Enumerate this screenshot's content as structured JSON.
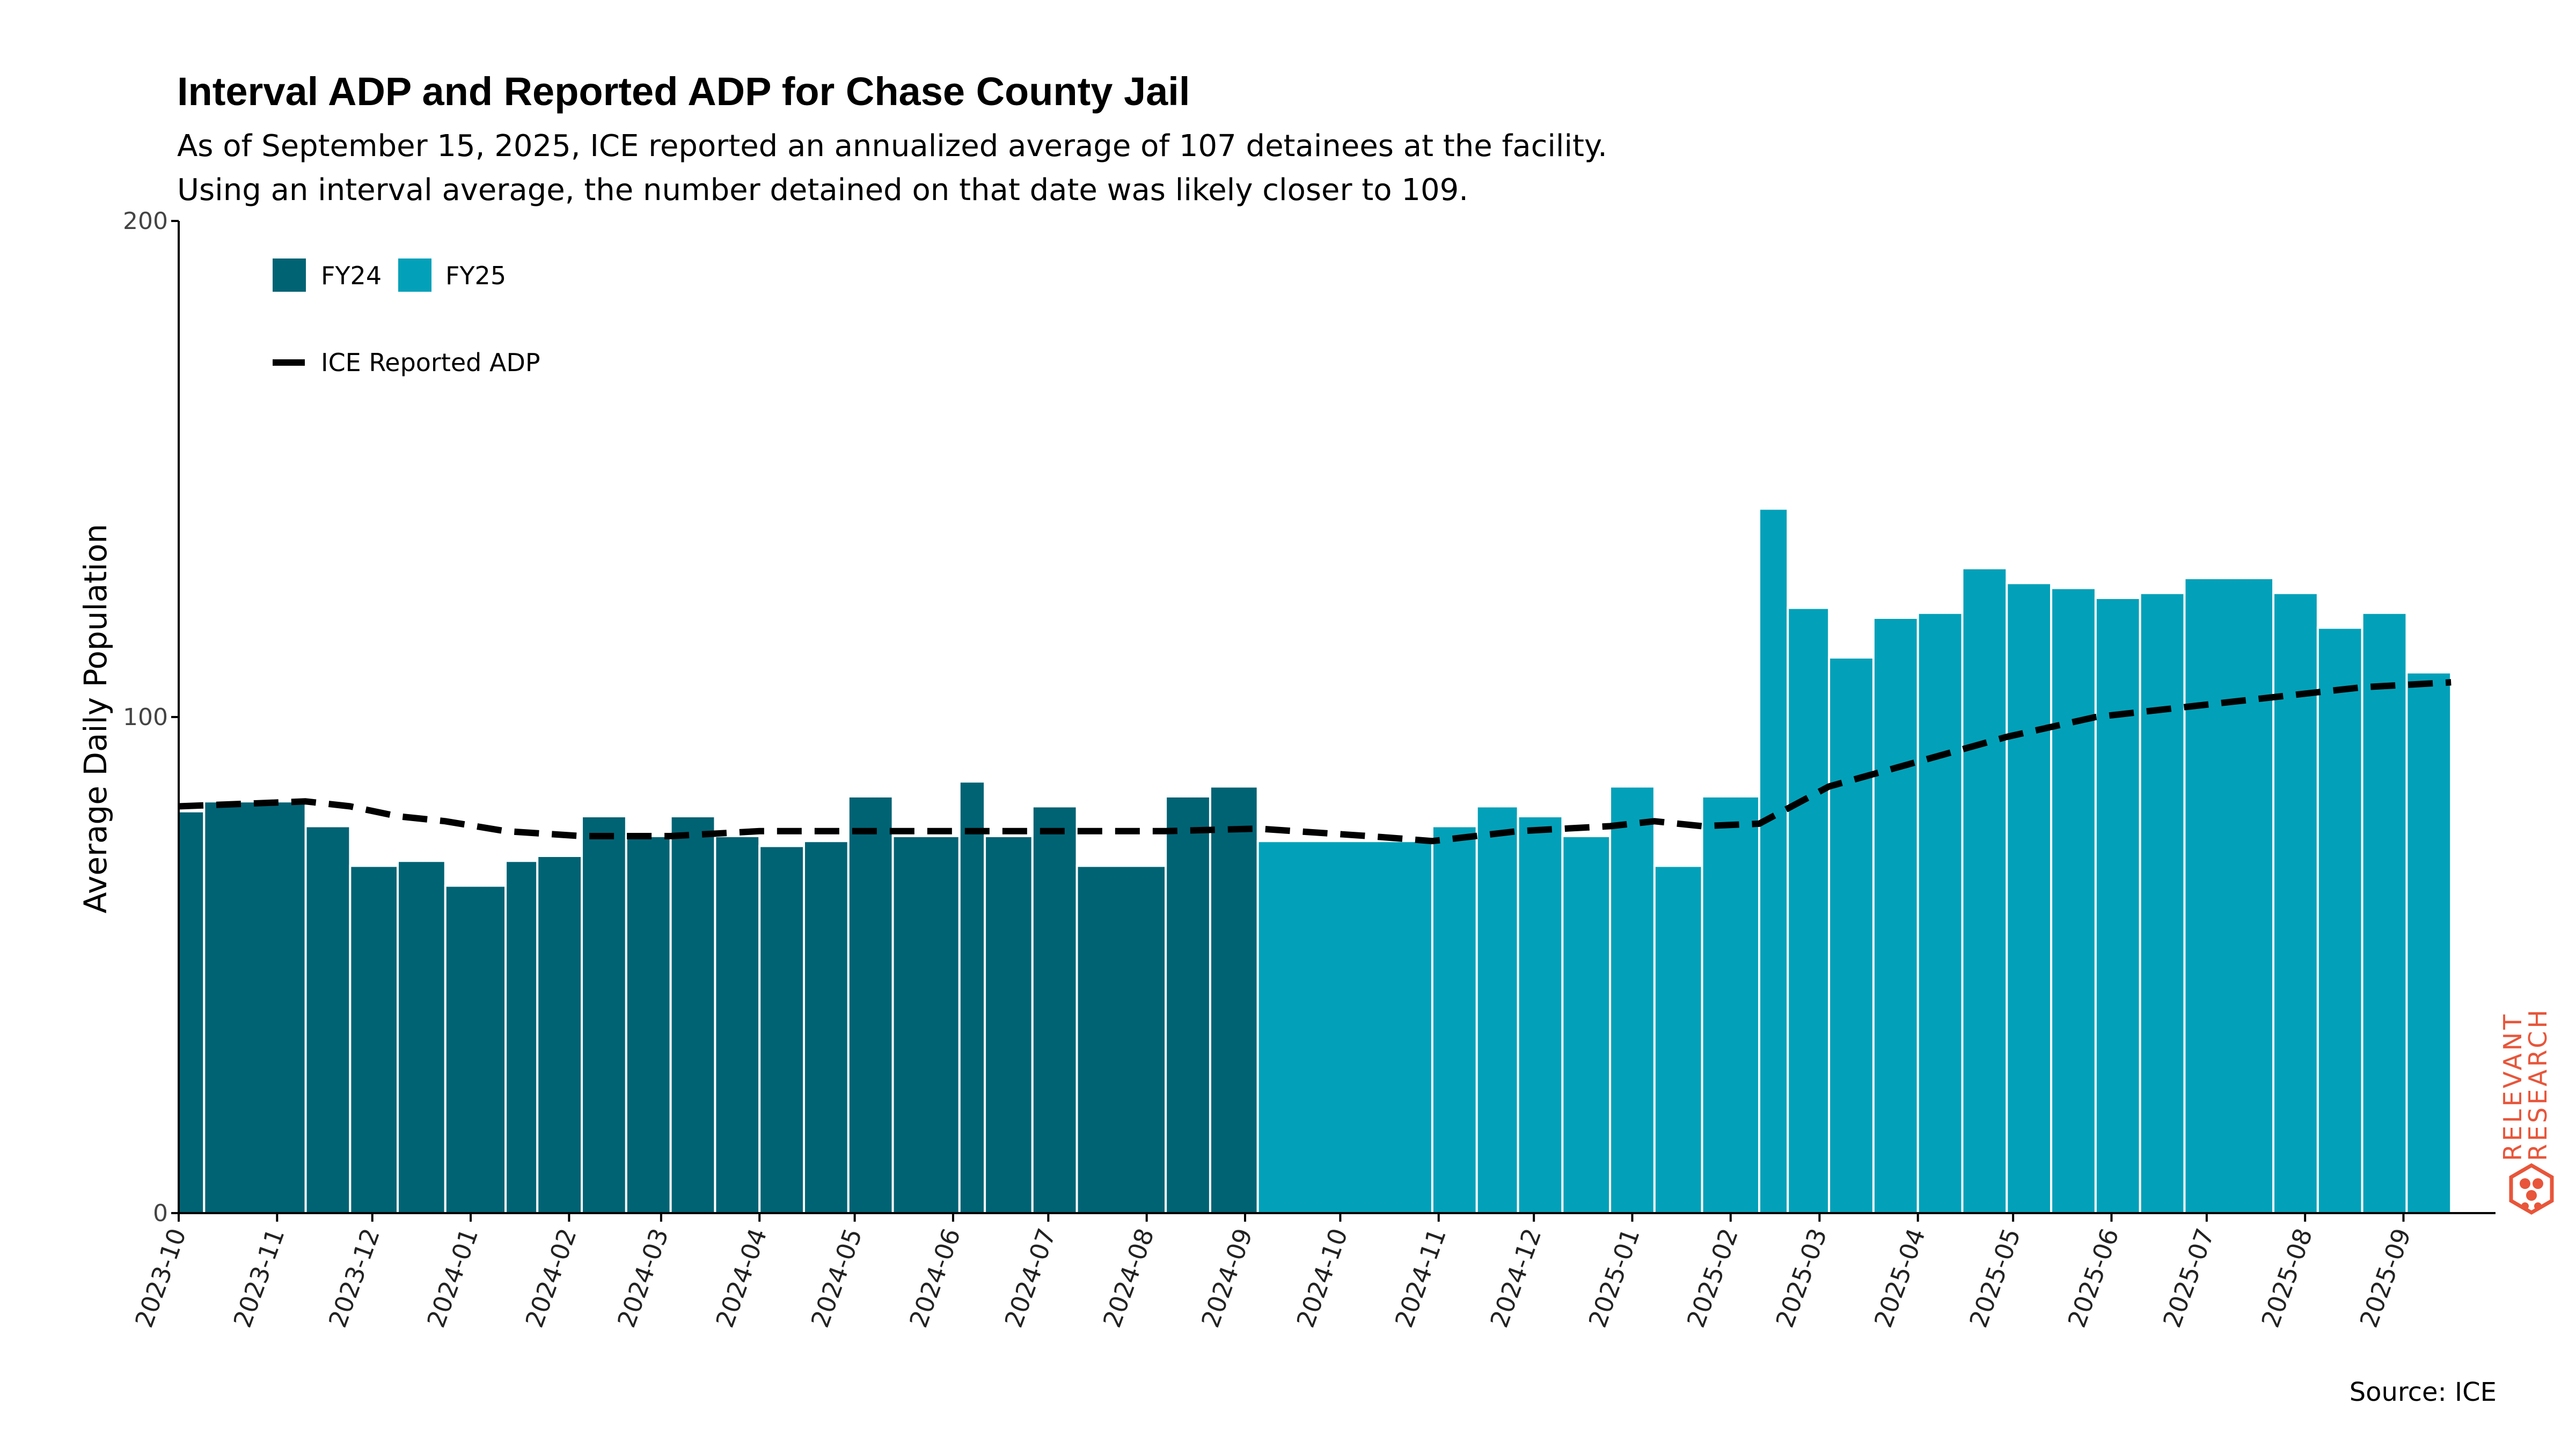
{
  "chart_data": {
    "type": "bar",
    "title": "Interval ADP and Reported ADP for Chase County Jail",
    "subtitle_lines": [
      "As of September 15, 2025, ICE reported an annualized average of 107 detainees at the facility.",
      "Using an interval average, the number detained on that date was likely closer to 109."
    ],
    "ylabel": "Average Daily Population",
    "xlabel": "",
    "ylim": [
      0,
      200
    ],
    "yticks": [
      "0",
      "100",
      "200"
    ],
    "xticks": [
      "2023-10",
      "2023-11",
      "2023-12",
      "2024-01",
      "2024-02",
      "2024-03",
      "2024-04",
      "2024-05",
      "2024-06",
      "2024-07",
      "2024-08",
      "2024-09",
      "2024-10",
      "2024-11",
      "2024-12",
      "2025-01",
      "2025-02",
      "2025-03",
      "2025-04",
      "2025-05",
      "2025-06",
      "2025-07",
      "2025-08",
      "2025-09"
    ],
    "x_range": [
      "2023-10-01",
      "2025-09-30"
    ],
    "legend": [
      {
        "label": "FY24",
        "color": "#006374",
        "kind": "bar"
      },
      {
        "label": "FY25",
        "color": "#02a1b9",
        "kind": "bar"
      },
      {
        "label": "ICE Reported ADP",
        "color": "#000000",
        "kind": "dashed-line"
      }
    ],
    "legend_position": "top-left",
    "grid": false,
    "bars": [
      {
        "start": "2023-10-01",
        "end": "2023-10-09",
        "value": 81,
        "fy": "FY24"
      },
      {
        "start": "2023-10-09",
        "end": "2023-11-10",
        "value": 83,
        "fy": "FY24"
      },
      {
        "start": "2023-11-10",
        "end": "2023-11-24",
        "value": 78,
        "fy": "FY24"
      },
      {
        "start": "2023-11-24",
        "end": "2023-12-09",
        "value": 70,
        "fy": "FY24"
      },
      {
        "start": "2023-12-09",
        "end": "2023-12-24",
        "value": 71,
        "fy": "FY24"
      },
      {
        "start": "2023-12-24",
        "end": "2024-01-12",
        "value": 66,
        "fy": "FY24"
      },
      {
        "start": "2024-01-12",
        "end": "2024-01-22",
        "value": 71,
        "fy": "FY24"
      },
      {
        "start": "2024-01-22",
        "end": "2024-02-05",
        "value": 72,
        "fy": "FY24"
      },
      {
        "start": "2024-02-05",
        "end": "2024-02-19",
        "value": 80,
        "fy": "FY24"
      },
      {
        "start": "2024-02-19",
        "end": "2024-03-04",
        "value": 76,
        "fy": "FY24"
      },
      {
        "start": "2024-03-04",
        "end": "2024-03-18",
        "value": 80,
        "fy": "FY24"
      },
      {
        "start": "2024-03-18",
        "end": "2024-04-01",
        "value": 76,
        "fy": "FY24"
      },
      {
        "start": "2024-04-01",
        "end": "2024-04-15",
        "value": 74,
        "fy": "FY24"
      },
      {
        "start": "2024-04-15",
        "end": "2024-04-29",
        "value": 75,
        "fy": "FY24"
      },
      {
        "start": "2024-04-29",
        "end": "2024-05-13",
        "value": 84,
        "fy": "FY24"
      },
      {
        "start": "2024-05-13",
        "end": "2024-06-03",
        "value": 76,
        "fy": "FY24"
      },
      {
        "start": "2024-06-03",
        "end": "2024-06-11",
        "value": 87,
        "fy": "FY24"
      },
      {
        "start": "2024-06-11",
        "end": "2024-06-26",
        "value": 76,
        "fy": "FY24"
      },
      {
        "start": "2024-06-26",
        "end": "2024-07-10",
        "value": 82,
        "fy": "FY24"
      },
      {
        "start": "2024-07-10",
        "end": "2024-08-07",
        "value": 70,
        "fy": "FY24"
      },
      {
        "start": "2024-08-07",
        "end": "2024-08-21",
        "value": 84,
        "fy": "FY24"
      },
      {
        "start": "2024-08-21",
        "end": "2024-09-05",
        "value": 86,
        "fy": "FY24"
      },
      {
        "start": "2024-09-05",
        "end": "2024-10-30",
        "value": 75,
        "fy": "FY25"
      },
      {
        "start": "2024-10-30",
        "end": "2024-11-13",
        "value": 78,
        "fy": "FY25"
      },
      {
        "start": "2024-11-13",
        "end": "2024-11-26",
        "value": 82,
        "fy": "FY25"
      },
      {
        "start": "2024-11-26",
        "end": "2024-12-10",
        "value": 80,
        "fy": "FY25"
      },
      {
        "start": "2024-12-10",
        "end": "2024-12-25",
        "value": 76,
        "fy": "FY25"
      },
      {
        "start": "2024-12-25",
        "end": "2025-01-08",
        "value": 86,
        "fy": "FY25"
      },
      {
        "start": "2025-01-08",
        "end": "2025-01-23",
        "value": 70,
        "fy": "FY25"
      },
      {
        "start": "2025-01-23",
        "end": "2025-02-10",
        "value": 84,
        "fy": "FY25"
      },
      {
        "start": "2025-02-10",
        "end": "2025-02-19",
        "value": 142,
        "fy": "FY25"
      },
      {
        "start": "2025-02-19",
        "end": "2025-03-04",
        "value": 122,
        "fy": "FY25"
      },
      {
        "start": "2025-03-04",
        "end": "2025-03-18",
        "value": 112,
        "fy": "FY25"
      },
      {
        "start": "2025-03-18",
        "end": "2025-04-01",
        "value": 120,
        "fy": "FY25"
      },
      {
        "start": "2025-04-01",
        "end": "2025-04-15",
        "value": 121,
        "fy": "FY25"
      },
      {
        "start": "2025-04-15",
        "end": "2025-04-29",
        "value": 130,
        "fy": "FY25"
      },
      {
        "start": "2025-04-29",
        "end": "2025-05-13",
        "value": 127,
        "fy": "FY25"
      },
      {
        "start": "2025-05-13",
        "end": "2025-05-27",
        "value": 126,
        "fy": "FY25"
      },
      {
        "start": "2025-05-27",
        "end": "2025-06-10",
        "value": 124,
        "fy": "FY25"
      },
      {
        "start": "2025-06-10",
        "end": "2025-06-24",
        "value": 125,
        "fy": "FY25"
      },
      {
        "start": "2025-06-24",
        "end": "2025-07-22",
        "value": 128,
        "fy": "FY25"
      },
      {
        "start": "2025-07-22",
        "end": "2025-08-05",
        "value": 125,
        "fy": "FY25"
      },
      {
        "start": "2025-08-05",
        "end": "2025-08-19",
        "value": 118,
        "fy": "FY25"
      },
      {
        "start": "2025-08-19",
        "end": "2025-09-02",
        "value": 121,
        "fy": "FY25"
      },
      {
        "start": "2025-09-02",
        "end": "2025-09-16",
        "value": 109,
        "fy": "FY25"
      }
    ],
    "series": [
      {
        "name": "ICE Reported ADP",
        "style": "dashed",
        "x": [
          "2023-10-01",
          "2023-11-10",
          "2023-11-24",
          "2023-12-09",
          "2023-12-24",
          "2024-01-12",
          "2024-02-05",
          "2024-03-04",
          "2024-04-01",
          "2024-05-13",
          "2024-06-26",
          "2024-08-07",
          "2024-09-05",
          "2024-10-10",
          "2024-10-30",
          "2024-11-26",
          "2024-12-25",
          "2025-01-08",
          "2025-01-23",
          "2025-02-10",
          "2025-03-04",
          "2025-04-01",
          "2025-04-29",
          "2025-05-27",
          "2025-06-24",
          "2025-07-22",
          "2025-08-19",
          "2025-09-02",
          "2025-09-16"
        ],
        "y": [
          82,
          83,
          82,
          80,
          79,
          77,
          76,
          76,
          77,
          77,
          77,
          77,
          77.5,
          76,
          75,
          77,
          78,
          79,
          78,
          78.5,
          86,
          91,
          96,
          100,
          102,
          104,
          106,
          106.5,
          107
        ]
      }
    ]
  },
  "source_label": "Source: ICE",
  "logo": {
    "lines": [
      "RELEVANT",
      "RESEARCH"
    ],
    "color": "#e8553a"
  }
}
